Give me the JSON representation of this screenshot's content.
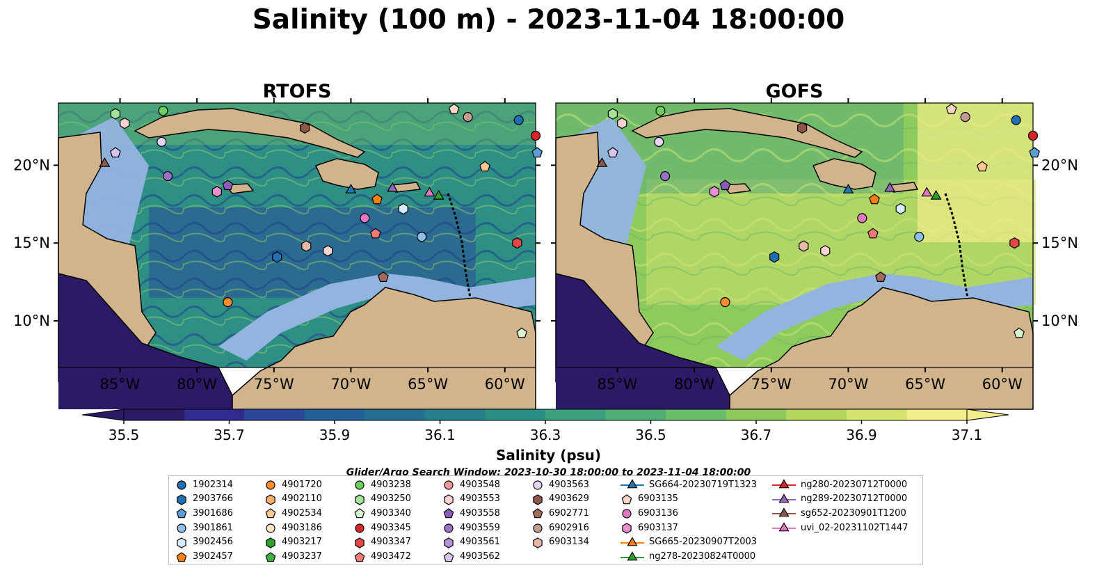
{
  "title": "Salinity (100 m) - 2023-11-04 18:00:00",
  "chart_data": {
    "type": "heatmap",
    "panels": [
      {
        "title": "RTOFS",
        "longitude_range": [
          -89,
          -58
        ],
        "latitude_range": [
          7,
          24
        ]
      },
      {
        "title": "GOFS",
        "longitude_range": [
          -89,
          -58
        ],
        "latitude_range": [
          7,
          24
        ]
      }
    ],
    "x_ticks": [
      "85°W",
      "80°W",
      "75°W",
      "70°W",
      "65°W",
      "60°W"
    ],
    "y_ticks": [
      "20°N",
      "15°N",
      "10°N"
    ],
    "colorbar": {
      "label": "Salinity (psu)",
      "range": [
        35.5,
        37.1
      ],
      "tick_labels": [
        "35.5",
        "35.7",
        "35.9",
        "36.1",
        "36.3",
        "36.5",
        "36.7",
        "36.9",
        "37.1"
      ],
      "extend": "both",
      "colors": [
        "#2b1a66",
        "#302c8f",
        "#2a4799",
        "#245f97",
        "#236f8f",
        "#25808b",
        "#2b8f86",
        "#3a9e7f",
        "#51ad76",
        "#6cbd6b",
        "#90c95b",
        "#b4d65a",
        "#d3e36c",
        "#f2ec8a"
      ]
    }
  },
  "search_window": "Glider/Argo Search Window: 2023-10-30 18:00:00 to 2023-11-04 18:00:00",
  "colors": {
    "land": "#d2b48c",
    "shelf": "#94b4e0",
    "deep_rtofs": "#2e8f85",
    "deep_gofs": "#8ecb5d"
  },
  "legend": [
    {
      "label": "1902314",
      "marker": "circle",
      "color": "#1f6fb4"
    },
    {
      "label": "2903766",
      "marker": "hexagon",
      "color": "#1f6fb4"
    },
    {
      "label": "3901686",
      "marker": "pentagon",
      "color": "#5aa0d8"
    },
    {
      "label": "3901861",
      "marker": "circle",
      "color": "#8cbfe8"
    },
    {
      "label": "3902456",
      "marker": "hexagon",
      "color": "#d7ecfa"
    },
    {
      "label": "3902457",
      "marker": "pentagon",
      "color": "#ff7f0e"
    },
    {
      "label": "4901720",
      "marker": "circle",
      "color": "#ff8c2a"
    },
    {
      "label": "4902110",
      "marker": "hexagon",
      "color": "#ffae6b"
    },
    {
      "label": "4902534",
      "marker": "pentagon",
      "color": "#ffc68f"
    },
    {
      "label": "4903186",
      "marker": "circle",
      "color": "#ffe5c8"
    },
    {
      "label": "4903217",
      "marker": "hexagon",
      "color": "#2ca02c"
    },
    {
      "label": "4903237",
      "marker": "pentagon",
      "color": "#3cb63c"
    },
    {
      "label": "4903238",
      "marker": "circle",
      "color": "#6bcf5c"
    },
    {
      "label": "4903250",
      "marker": "hexagon",
      "color": "#a6e29a"
    },
    {
      "label": "4903340",
      "marker": "pentagon",
      "color": "#d8f5cf"
    },
    {
      "label": "4903345",
      "marker": "circle",
      "color": "#d62728"
    },
    {
      "label": "4903347",
      "marker": "hexagon",
      "color": "#e2484a"
    },
    {
      "label": "4903472",
      "marker": "pentagon",
      "color": "#f07a7a"
    },
    {
      "label": "4903548",
      "marker": "circle",
      "color": "#f59a9a"
    },
    {
      "label": "4903553",
      "marker": "hexagon",
      "color": "#fcd2d2"
    },
    {
      "label": "4903558",
      "marker": "pentagon",
      "color": "#8c5ab8"
    },
    {
      "label": "4903559",
      "marker": "circle",
      "color": "#9b70c6"
    },
    {
      "label": "4903561",
      "marker": "hexagon",
      "color": "#b493d6"
    },
    {
      "label": "4903562",
      "marker": "pentagon",
      "color": "#d9c4ee"
    },
    {
      "label": "4903563",
      "marker": "circle",
      "color": "#e7d4f6"
    },
    {
      "label": "4903629",
      "marker": "hexagon",
      "color": "#8c564b"
    },
    {
      "label": "6902771",
      "marker": "pentagon",
      "color": "#a46a5c"
    },
    {
      "label": "6902916",
      "marker": "circle",
      "color": "#c49c94"
    },
    {
      "label": "6903134",
      "marker": "hexagon",
      "color": "#e8b9a6"
    },
    {
      "label": "SG664-20230719T1323",
      "marker": "triangle-line",
      "color": "#1f77b4"
    },
    {
      "label": "6903135",
      "marker": "pentagon",
      "color": "#f9d6c4"
    },
    {
      "label": "6903136",
      "marker": "circle",
      "color": "#e377c2"
    },
    {
      "label": "6903137",
      "marker": "hexagon",
      "color": "#ec8fd0"
    },
    {
      "label": "SG665-20230907T2003",
      "marker": "triangle-line",
      "color": "#ff7f0e"
    },
    {
      "label": "ng278-20230824T0000",
      "marker": "triangle-line",
      "color": "#2ca02c"
    },
    {
      "label": "ng280-20230712T0000",
      "marker": "triangle-line",
      "color": "#d62728"
    },
    {
      "label": "ng289-20230712T0000",
      "marker": "triangle-line",
      "color": "#9467bd"
    },
    {
      "label": "sg652-20230901T1200",
      "marker": "triangle-line",
      "color": "#8c564b"
    },
    {
      "label": "uvi_02-20231102T1447",
      "marker": "triangle-line",
      "color": "#e377c2"
    }
  ],
  "floats": [
    {
      "id": "1902314",
      "lon": -59.1,
      "lat": 22.9
    },
    {
      "id": "3901686",
      "lon": -57.9,
      "lat": 20.8
    },
    {
      "id": "4903345",
      "lon": -58.0,
      "lat": 21.9
    },
    {
      "id": "4903238",
      "lon": -82.2,
      "lat": 23.5
    },
    {
      "id": "4903250",
      "lon": -85.3,
      "lat": 23.3
    },
    {
      "id": "4903553",
      "lon": -84.7,
      "lat": 22.7
    },
    {
      "id": "4903562",
      "lon": -85.3,
      "lat": 20.8
    },
    {
      "id": "4903563",
      "lon": -82.3,
      "lat": 21.5
    },
    {
      "id": "6903135",
      "lon": -63.3,
      "lat": 23.6
    },
    {
      "id": "6902916",
      "lon": -62.4,
      "lat": 23.1
    },
    {
      "id": "4903629",
      "lon": -73.0,
      "lat": 22.4
    },
    {
      "id": "4903559",
      "lon": -81.9,
      "lat": 19.3
    },
    {
      "id": "6903137",
      "lon": -78.7,
      "lat": 18.3
    },
    {
      "id": "4903558",
      "lon": -78.0,
      "lat": 18.7
    },
    {
      "id": "4902534",
      "lon": -61.3,
      "lat": 19.9
    },
    {
      "id": "3902456",
      "lon": -66.6,
      "lat": 17.2
    },
    {
      "id": "6903136",
      "lon": -69.1,
      "lat": 16.6
    },
    {
      "id": "4903472",
      "lon": -68.4,
      "lat": 15.6
    },
    {
      "id": "3901861",
      "lon": -65.4,
      "lat": 15.4
    },
    {
      "id": "4903347",
      "lon": -59.2,
      "lat": 15.0
    },
    {
      "id": "6903134",
      "lon": -72.9,
      "lat": 14.8
    },
    {
      "id": "4903553",
      "lon": -71.5,
      "lat": 14.5
    },
    {
      "id": "2903766",
      "lon": -74.8,
      "lat": 14.1
    },
    {
      "id": "6902771",
      "lon": -67.9,
      "lat": 12.8
    },
    {
      "id": "4901720",
      "lon": -78.0,
      "lat": 11.2
    },
    {
      "id": "4903340",
      "lon": -58.9,
      "lat": 9.2
    },
    {
      "id": "3902457",
      "lon": -68.3,
      "lat": 17.8
    }
  ],
  "gliders": [
    {
      "id": "sg652-20230901T1200",
      "lon": -86.0,
      "lat": 20.1
    },
    {
      "id": "SG664-20230719T1323",
      "lon": -70.0,
      "lat": 18.4
    },
    {
      "id": "ng289-20230712T0000",
      "lon": -67.3,
      "lat": 18.5
    },
    {
      "id": "uvi_02-20231102T1447",
      "lon": -64.9,
      "lat": 18.2
    },
    {
      "id": "ng278-20230824T0000",
      "lon": -64.3,
      "lat": 18.0
    }
  ]
}
